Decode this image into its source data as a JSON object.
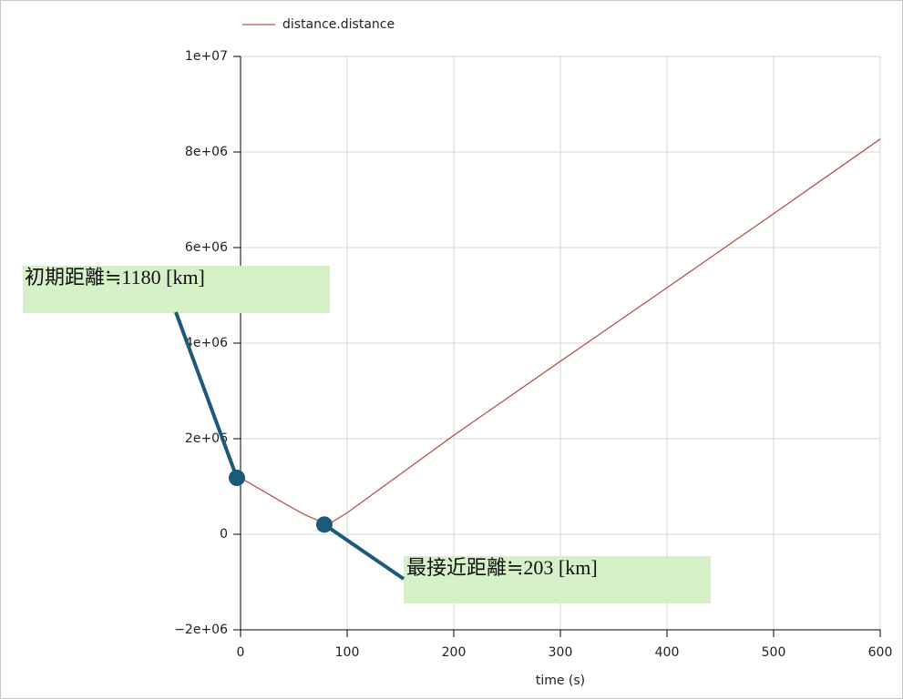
{
  "chart_data": {
    "type": "line",
    "x_label": "time (s)",
    "x": [
      0,
      20,
      40,
      60,
      82,
      100,
      200,
      300,
      400,
      500,
      600
    ],
    "series": [
      {
        "name": "distance.distance",
        "color": "#b5544c",
        "values": [
          1180000,
          920000,
          660000,
          410000,
          203000,
          450000,
          2070000,
          3620000,
          5160000,
          6710000,
          8270000
        ]
      }
    ],
    "xlim": [
      0,
      600
    ],
    "xticks": [
      0,
      100,
      200,
      300,
      400,
      500,
      600
    ],
    "ylim": [
      -2000000,
      10000000
    ],
    "yticks": [
      {
        "value": -2000000,
        "label": "−2e+06"
      },
      0,
      {
        "value": 2000000,
        "label": "2e+06"
      },
      {
        "value": 4000000,
        "label": "4e+06"
      },
      {
        "value": 6000000,
        "label": "6e+06"
      },
      {
        "value": 8000000,
        "label": "8e+06"
      },
      {
        "value": 10000000,
        "label": "1e+07"
      }
    ],
    "grid": true,
    "legend": "top",
    "annotations": [
      {
        "text": "初期距離≒1180 [km]",
        "x": 0,
        "y": 1180000
      },
      {
        "text": "最接近距離≒203 [km]",
        "x": 82,
        "y": 203000
      }
    ]
  }
}
